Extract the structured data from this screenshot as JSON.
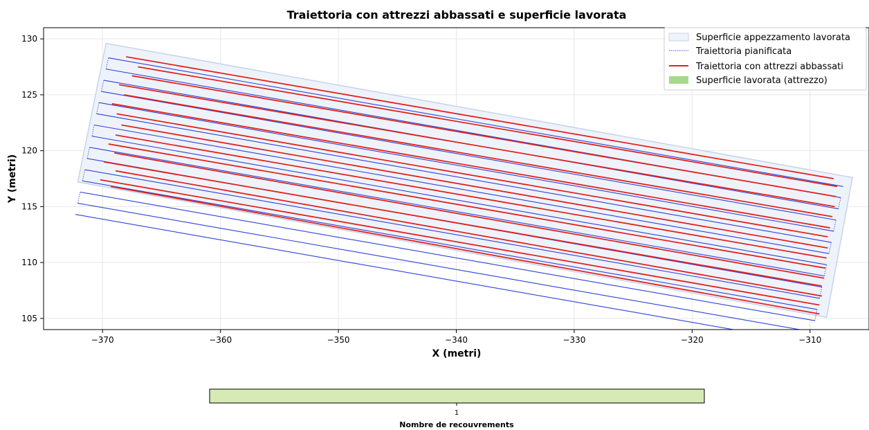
{
  "chart_data": {
    "type": "line",
    "title": "Traiettoria con attrezzi abbassati e superficie lavorata",
    "xlabel": "X (metri)",
    "ylabel": "Y (metri)",
    "xlim": [
      -375,
      -305
    ],
    "ylim": [
      104,
      131
    ],
    "xticks": [
      -370,
      -360,
      -350,
      -340,
      -330,
      -320,
      -310
    ],
    "yticks": [
      105,
      110,
      115,
      120,
      125,
      130
    ],
    "xtick_labels": [
      "−370",
      "−360",
      "−350",
      "−340",
      "−330",
      "−320",
      "−310"
    ],
    "ytick_labels": [
      "105",
      "110",
      "115",
      "120",
      "125",
      "130"
    ],
    "grid": true,
    "legend_position": "top-right",
    "legend": [
      "Superficie appezzamento lavorata",
      "Traiettoria pianificata",
      "Traiettoria con attrezzi abbassati",
      "Superficie lavorata (attrezzo)"
    ],
    "field_polygon": [
      [
        -369.7,
        129.6
      ],
      [
        -306.4,
        117.6
      ],
      [
        -308.6,
        105.1
      ],
      [
        -372.1,
        117.2
      ]
    ],
    "planned_rows": [
      {
        "x": [
          -369.5,
          -307.2
        ],
        "y": [
          128.3,
          116.8
        ]
      },
      {
        "x": [
          -369.7,
          -307.4
        ],
        "y": [
          127.3,
          115.8
        ]
      },
      {
        "x": [
          -369.9,
          -307.6
        ],
        "y": [
          126.3,
          114.8
        ]
      },
      {
        "x": [
          -370.1,
          -307.8
        ],
        "y": [
          125.3,
          113.8
        ]
      },
      {
        "x": [
          -370.3,
          -308.0
        ],
        "y": [
          124.3,
          112.8
        ]
      },
      {
        "x": [
          -370.5,
          -308.2
        ],
        "y": [
          123.3,
          111.8
        ]
      },
      {
        "x": [
          -370.7,
          -308.4
        ],
        "y": [
          122.3,
          110.8
        ]
      },
      {
        "x": [
          -370.9,
          -308.6
        ],
        "y": [
          121.3,
          109.8
        ]
      },
      {
        "x": [
          -371.1,
          -308.8
        ],
        "y": [
          120.3,
          108.8
        ]
      },
      {
        "x": [
          -371.3,
          -309.0
        ],
        "y": [
          119.3,
          107.8
        ]
      },
      {
        "x": [
          -371.5,
          -309.2
        ],
        "y": [
          118.3,
          106.8
        ]
      },
      {
        "x": [
          -371.7,
          -309.4
        ],
        "y": [
          117.3,
          105.8
        ]
      },
      {
        "x": [
          -371.9,
          -309.6
        ],
        "y": [
          116.3,
          104.8
        ]
      },
      {
        "x": [
          -372.1,
          -309.8
        ],
        "y": [
          115.3,
          103.8
        ]
      },
      {
        "x": [
          -372.3,
          -310.0
        ],
        "y": [
          114.3,
          102.8
        ]
      }
    ],
    "lowered_rows": [
      {
        "x": [
          -368.0,
          -308.0
        ],
        "y": [
          128.4,
          117.5
        ]
      },
      {
        "x": [
          -367.0,
          -307.7
        ],
        "y": [
          127.5,
          116.8
        ]
      },
      {
        "x": [
          -367.5,
          -307.8
        ],
        "y": [
          126.7,
          115.9
        ]
      },
      {
        "x": [
          -368.6,
          -307.9
        ],
        "y": [
          125.9,
          115.0
        ]
      },
      {
        "x": [
          -368.2,
          -308.1
        ],
        "y": [
          125.0,
          114.1
        ]
      },
      {
        "x": [
          -369.2,
          -308.3
        ],
        "y": [
          124.2,
          113.1
        ]
      },
      {
        "x": [
          -368.8,
          -308.5
        ],
        "y": [
          123.3,
          112.3
        ]
      },
      {
        "x": [
          -368.4,
          -308.5
        ],
        "y": [
          122.3,
          111.3
        ]
      },
      {
        "x": [
          -368.9,
          -308.6
        ],
        "y": [
          121.4,
          110.4
        ]
      },
      {
        "x": [
          -369.5,
          -308.7
        ],
        "y": [
          120.6,
          109.5
        ]
      },
      {
        "x": [
          -369.0,
          -308.8
        ],
        "y": [
          119.8,
          108.6
        ]
      },
      {
        "x": [
          -369.9,
          -309.0
        ],
        "y": [
          119.0,
          107.9
        ]
      },
      {
        "x": [
          -368.9,
          -309.0
        ],
        "y": [
          118.2,
          107.0
        ]
      },
      {
        "x": [
          -370.2,
          -309.2
        ],
        "y": [
          117.4,
          106.2
        ]
      },
      {
        "x": [
          -369.3,
          -309.2
        ],
        "y": [
          116.8,
          105.4
        ]
      }
    ],
    "colorbar": {
      "label": "Nombre de recouvrements",
      "ticks": [
        "1"
      ],
      "value": 1,
      "color": "#d5eab5"
    },
    "colors": {
      "planned": "#2f3fd8",
      "lowered": "#e3221c",
      "field_edge": "#c6d3ea",
      "field_fill": "#eef3fb",
      "worked_area": "#a8d88c",
      "grid": "#e6e6e6"
    }
  }
}
